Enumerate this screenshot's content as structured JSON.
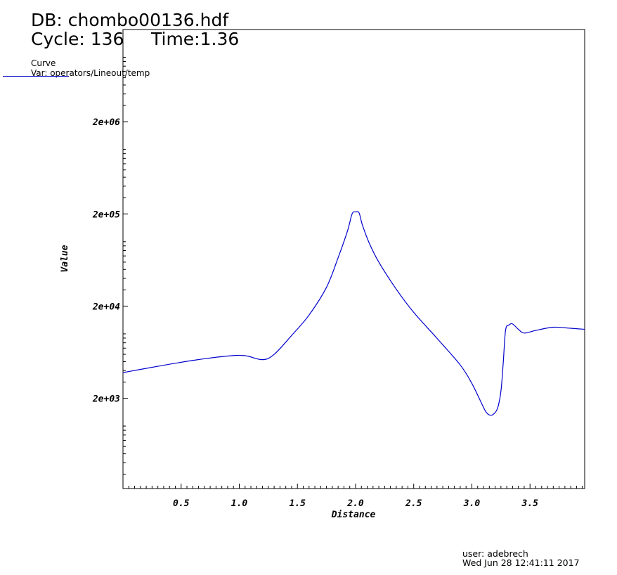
{
  "header": {
    "db": "DB: chombo00136.hdf",
    "cycle": "Cycle: 136",
    "time": "Time:1.36"
  },
  "legend": {
    "title": "Curve",
    "var": "Var: operators/Lineout/temp"
  },
  "footer": {
    "user": "user: adebrech",
    "date": "Wed Jun 28 12:41:11 2017"
  },
  "chart_data": {
    "type": "line",
    "xlabel": "Distance",
    "ylabel": "Value",
    "xlim": [
      0.0,
      3.97
    ],
    "y_scale": "log",
    "ylim": [
      210,
      20000000
    ],
    "x_ticks": [
      {
        "value": 0.5,
        "label": "0.5"
      },
      {
        "value": 1.0,
        "label": "1.0"
      },
      {
        "value": 1.5,
        "label": "1.5"
      },
      {
        "value": 2.0,
        "label": "2.0"
      },
      {
        "value": 2.5,
        "label": "2.5"
      },
      {
        "value": 3.0,
        "label": "3.0"
      },
      {
        "value": 3.5,
        "label": "3.5"
      }
    ],
    "y_ticks": [
      {
        "value": 2000,
        "label": "2e+03"
      },
      {
        "value": 20000,
        "label": "2e+04"
      },
      {
        "value": 200000,
        "label": "2e+05"
      },
      {
        "value": 2000000,
        "label": "2e+06"
      }
    ],
    "grid": false,
    "legend_position": "top-left",
    "line_color": "#0000cc",
    "series": [
      {
        "x": [
          0.0,
          0.3,
          0.6,
          0.9,
          1.05,
          1.2,
          1.3,
          1.45,
          1.6,
          1.75,
          1.85,
          1.93,
          1.97,
          2.0,
          2.03,
          2.06,
          2.12,
          2.2,
          2.35,
          2.5,
          2.7,
          2.9,
          3.0,
          3.08,
          3.12,
          3.15,
          3.18,
          3.22,
          3.25,
          3.27,
          3.29,
          3.32,
          3.35,
          3.4,
          3.45,
          3.55,
          3.7,
          3.85,
          3.97
        ],
        "y": [
          3800,
          4450,
          5150,
          5750,
          5800,
          5250,
          6000,
          9600,
          16000,
          32000,
          67000,
          130000,
          200000,
          210000,
          205000,
          150000,
          95000,
          60000,
          30500,
          17100,
          8950,
          4600,
          2900,
          1800,
          1430,
          1320,
          1330,
          1550,
          2400,
          4900,
          11000,
          12500,
          12800,
          11200,
          10200,
          10900,
          11800,
          11500,
          11200
        ]
      }
    ]
  }
}
